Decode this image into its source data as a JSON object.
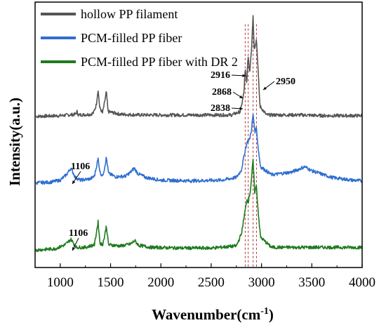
{
  "chart_data": {
    "type": "line",
    "title": "",
    "xlabel": "Wavenumber(cm",
    "xlabel_sup": "-1",
    "xlabel_close": ")",
    "ylabel": "Intensity(a.u.)",
    "xlim": [
      750,
      4000
    ],
    "x_ticks": [
      1000,
      1500,
      2000,
      2500,
      3000,
      3500,
      4000
    ],
    "y_ticks_labeled": false,
    "grid": false,
    "legend_position": "top-left",
    "series": [
      {
        "name": "hollow PP filament",
        "color": "#555555",
        "offset": 2.0,
        "points": [
          [
            760,
            0.05
          ],
          [
            1000,
            0.06
          ],
          [
            1150,
            0.08
          ],
          [
            1168,
            0.12
          ],
          [
            1180,
            0.07
          ],
          [
            1300,
            0.08
          ],
          [
            1330,
            0.1
          ],
          [
            1358,
            0.22
          ],
          [
            1376,
            0.45
          ],
          [
            1392,
            0.18
          ],
          [
            1420,
            0.1
          ],
          [
            1440,
            0.25
          ],
          [
            1458,
            0.42
          ],
          [
            1475,
            0.12
          ],
          [
            1600,
            0.08
          ],
          [
            1800,
            0.07
          ],
          [
            2000,
            0.07
          ],
          [
            2400,
            0.07
          ],
          [
            2700,
            0.07
          ],
          [
            2790,
            0.12
          ],
          [
            2825,
            0.4
          ],
          [
            2838,
            0.75
          ],
          [
            2852,
            0.55
          ],
          [
            2868,
            0.95
          ],
          [
            2882,
            0.7
          ],
          [
            2900,
            1.05
          ],
          [
            2916,
            1.55
          ],
          [
            2928,
            1.05
          ],
          [
            2950,
            1.2
          ],
          [
            2962,
            0.85
          ],
          [
            2985,
            0.2
          ],
          [
            3050,
            0.07
          ],
          [
            3400,
            0.07
          ],
          [
            3600,
            0.06
          ],
          [
            4000,
            0.06
          ]
        ]
      },
      {
        "name": "PCM-filled PP fiber",
        "color": "#2f6fcf",
        "offset": 1.0,
        "points": [
          [
            760,
            0.06
          ],
          [
            900,
            0.07
          ],
          [
            1000,
            0.1
          ],
          [
            1060,
            0.18
          ],
          [
            1106,
            0.28
          ],
          [
            1150,
            0.14
          ],
          [
            1200,
            0.1
          ],
          [
            1300,
            0.12
          ],
          [
            1340,
            0.16
          ],
          [
            1376,
            0.42
          ],
          [
            1395,
            0.22
          ],
          [
            1420,
            0.16
          ],
          [
            1440,
            0.28
          ],
          [
            1458,
            0.44
          ],
          [
            1480,
            0.2
          ],
          [
            1550,
            0.15
          ],
          [
            1650,
            0.16
          ],
          [
            1700,
            0.22
          ],
          [
            1735,
            0.28
          ],
          [
            1770,
            0.2
          ],
          [
            1850,
            0.14
          ],
          [
            2000,
            0.1
          ],
          [
            2300,
            0.09
          ],
          [
            2600,
            0.1
          ],
          [
            2750,
            0.14
          ],
          [
            2800,
            0.25
          ],
          [
            2838,
            0.55
          ],
          [
            2860,
            0.68
          ],
          [
            2880,
            0.7
          ],
          [
            2900,
            0.85
          ],
          [
            2916,
            1.08
          ],
          [
            2935,
            0.82
          ],
          [
            2950,
            0.88
          ],
          [
            2965,
            0.6
          ],
          [
            2990,
            0.3
          ],
          [
            3100,
            0.18
          ],
          [
            3300,
            0.22
          ],
          [
            3430,
            0.3
          ],
          [
            3500,
            0.24
          ],
          [
            3700,
            0.14
          ],
          [
            3900,
            0.1
          ],
          [
            4000,
            0.09
          ]
        ]
      },
      {
        "name": "PCM-filled PP fiber with DR 2",
        "color": "#1e7a1e",
        "offset": 0.0,
        "points": [
          [
            760,
            0.06
          ],
          [
            950,
            0.08
          ],
          [
            1050,
            0.14
          ],
          [
            1106,
            0.22
          ],
          [
            1160,
            0.1
          ],
          [
            1250,
            0.1
          ],
          [
            1340,
            0.14
          ],
          [
            1376,
            0.48
          ],
          [
            1395,
            0.16
          ],
          [
            1420,
            0.14
          ],
          [
            1440,
            0.26
          ],
          [
            1458,
            0.42
          ],
          [
            1480,
            0.14
          ],
          [
            1600,
            0.12
          ],
          [
            1700,
            0.15
          ],
          [
            1740,
            0.2
          ],
          [
            1780,
            0.13
          ],
          [
            1900,
            0.1
          ],
          [
            2200,
            0.09
          ],
          [
            2500,
            0.09
          ],
          [
            2750,
            0.12
          ],
          [
            2800,
            0.3
          ],
          [
            2838,
            0.65
          ],
          [
            2855,
            0.82
          ],
          [
            2868,
            0.78
          ],
          [
            2890,
            0.95
          ],
          [
            2916,
            1.4
          ],
          [
            2932,
            0.92
          ],
          [
            2950,
            1.02
          ],
          [
            2962,
            0.72
          ],
          [
            2990,
            0.25
          ],
          [
            3100,
            0.1
          ],
          [
            3500,
            0.1
          ],
          [
            4000,
            0.1
          ]
        ]
      }
    ],
    "reference_lines_x": [
      2838,
      2868,
      2916,
      2950
    ],
    "annotations": [
      {
        "text": "2916",
        "series": 0,
        "x": 2916
      },
      {
        "text": "2868",
        "series": 0,
        "x": 2868
      },
      {
        "text": "2838",
        "series": 0,
        "x": 2838
      },
      {
        "text": "2950",
        "series": 0,
        "x": 2950
      },
      {
        "text": "1106",
        "series": 1,
        "x": 1106
      },
      {
        "text": "1106",
        "series": 2,
        "x": 1106
      }
    ]
  }
}
